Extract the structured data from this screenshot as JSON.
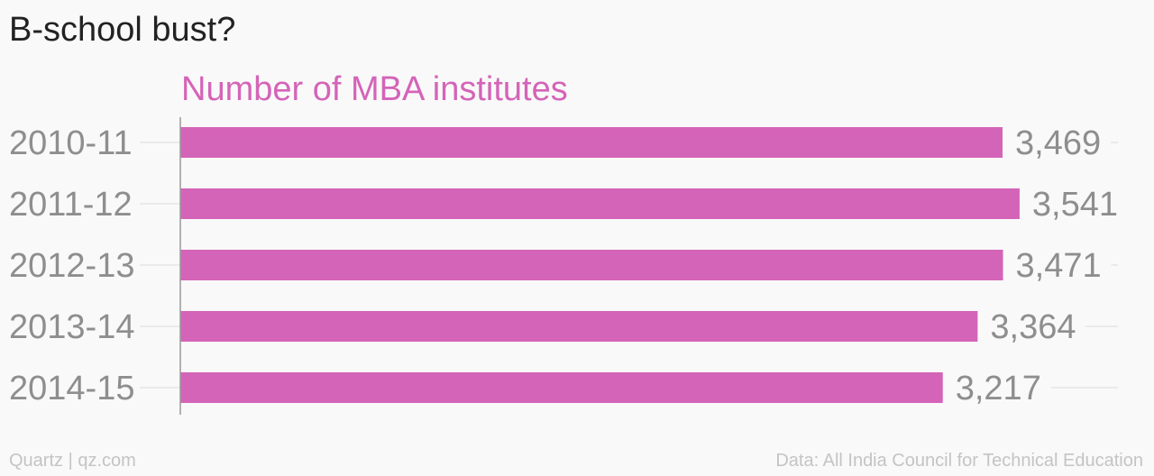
{
  "chart_data": {
    "type": "bar",
    "orientation": "horizontal",
    "title": "B-school bust?",
    "series": [
      {
        "name": "Number of MBA institutes",
        "values": [
          3469,
          3541,
          3471,
          3364,
          3217
        ]
      }
    ],
    "categories": [
      "2010-11",
      "2011-12",
      "2012-13",
      "2013-14",
      "2014-15"
    ],
    "value_labels": [
      "3,469",
      "3,541",
      "3,471",
      "3,364",
      "3,217"
    ],
    "xlim": [
      0,
      3600
    ],
    "grid": true,
    "legend": "none"
  },
  "colors": {
    "bar": "#d464b8",
    "series_title": "#d464b8",
    "labels": "#8e8e8e",
    "grid": "#e6e6e6",
    "axis": "#999999"
  },
  "footer": {
    "left": "Quartz | qz.com",
    "right": "Data: All India Council for Technical Education"
  }
}
